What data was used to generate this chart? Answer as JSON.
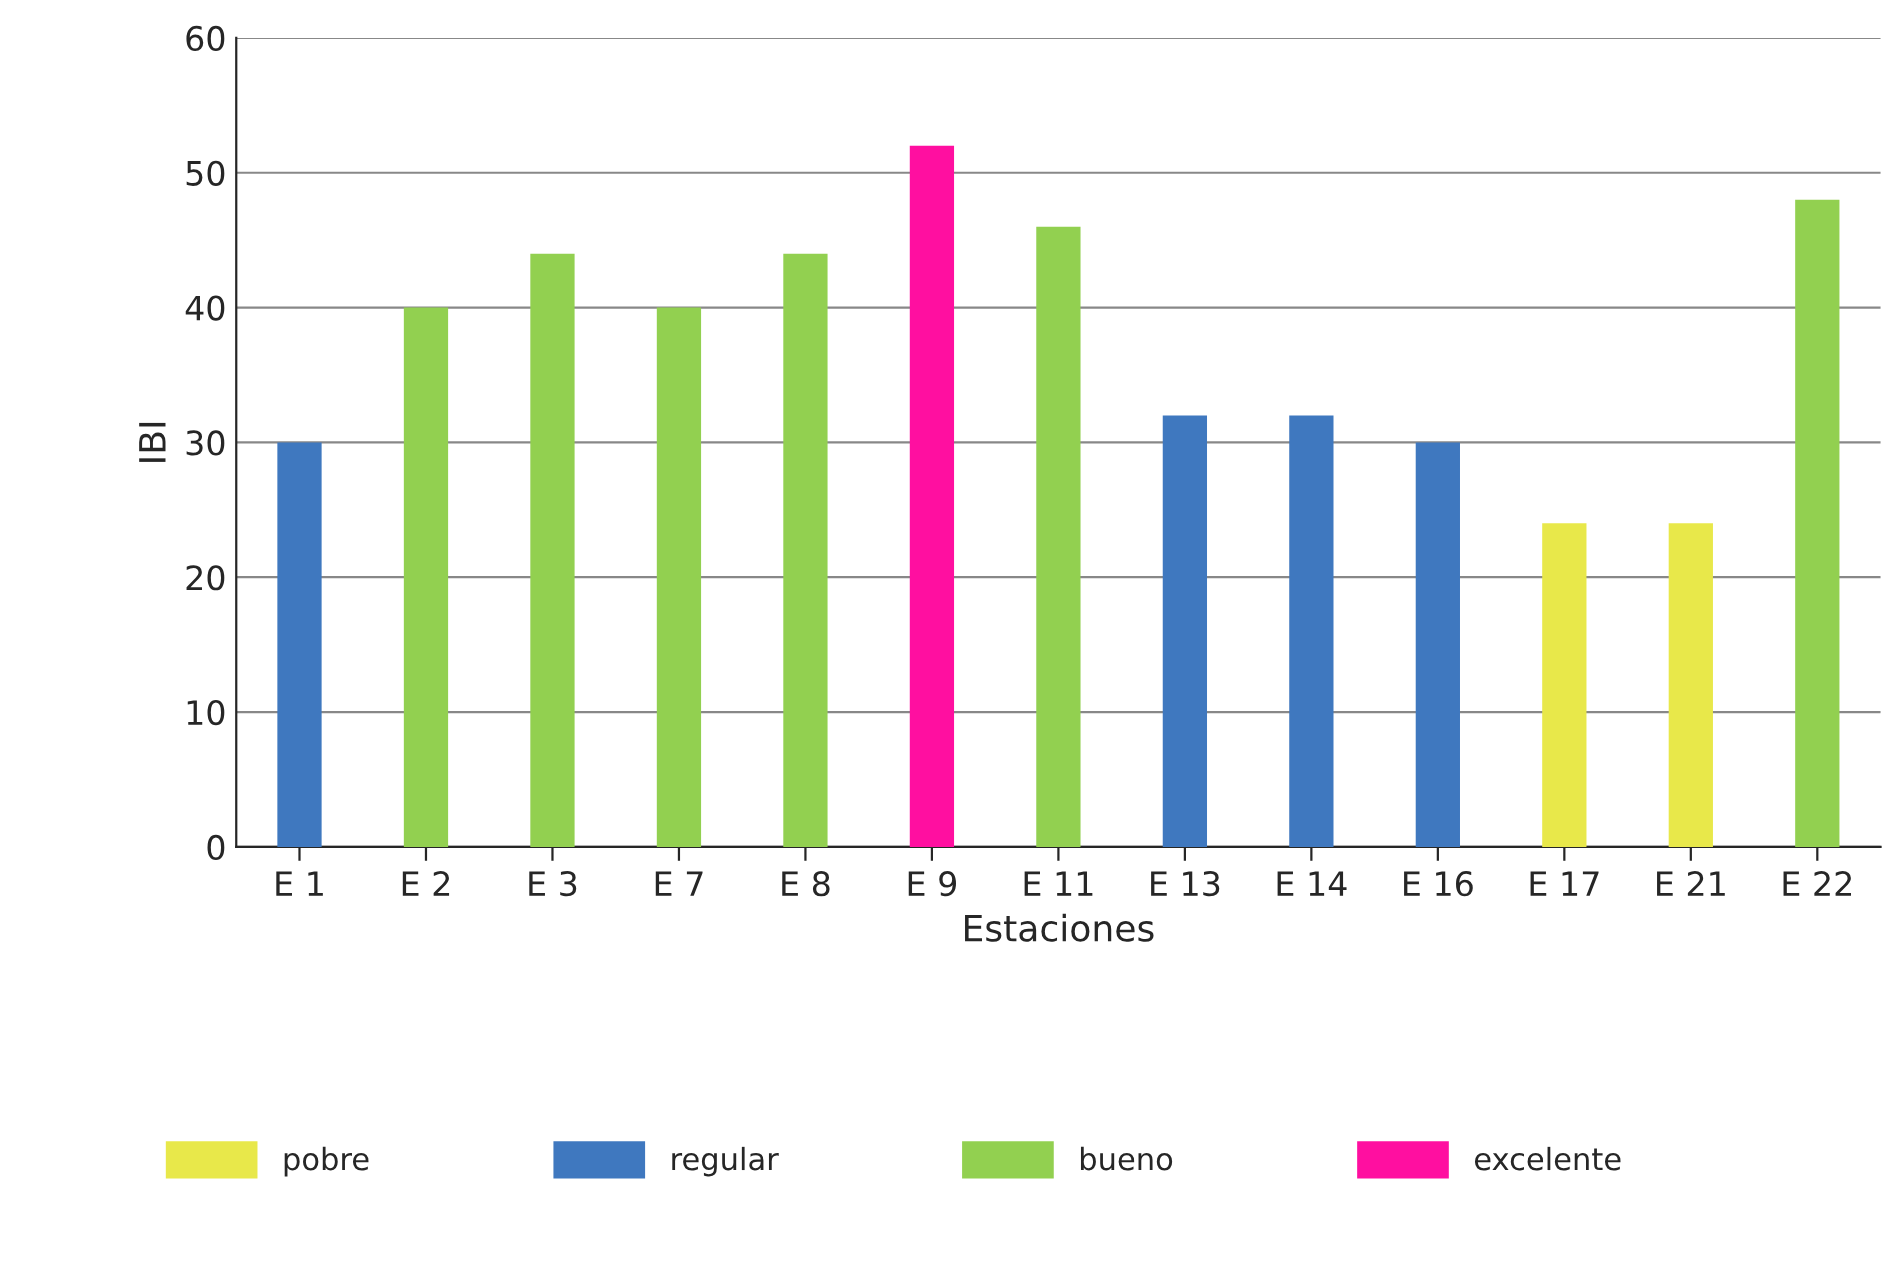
{
  "chart_data": {
    "type": "bar",
    "xlabel": "Estaciones",
    "ylabel": "IBI",
    "categories": [
      "E 1",
      "E 2",
      "E 3",
      "E 7",
      "E 8",
      "E 9",
      "E 11",
      "E 13",
      "E 14",
      "E 16",
      "E 17",
      "E 21",
      "E 22"
    ],
    "stacked": true,
    "series": [
      {
        "name": "pobre",
        "color": "#e8e84a",
        "values": [
          null,
          null,
          null,
          null,
          null,
          null,
          null,
          null,
          null,
          null,
          24,
          24,
          null
        ]
      },
      {
        "name": "regular",
        "color": "#3f78bf",
        "values": [
          30,
          null,
          null,
          null,
          null,
          null,
          null,
          32,
          32,
          30,
          null,
          null,
          null
        ]
      },
      {
        "name": "bueno",
        "color": "#92d050",
        "values": [
          null,
          40,
          44,
          40,
          44,
          null,
          46,
          null,
          null,
          null,
          null,
          null,
          48
        ]
      },
      {
        "name": "excelente",
        "color": "#ff0fa0",
        "values": [
          null,
          null,
          null,
          null,
          null,
          52,
          null,
          null,
          null,
          null,
          null,
          null,
          null
        ]
      }
    ],
    "ylim": [
      0,
      60
    ],
    "yticks": [
      0,
      10,
      20,
      30,
      40,
      50,
      60
    ],
    "grid": "y",
    "legend": "bottom"
  }
}
